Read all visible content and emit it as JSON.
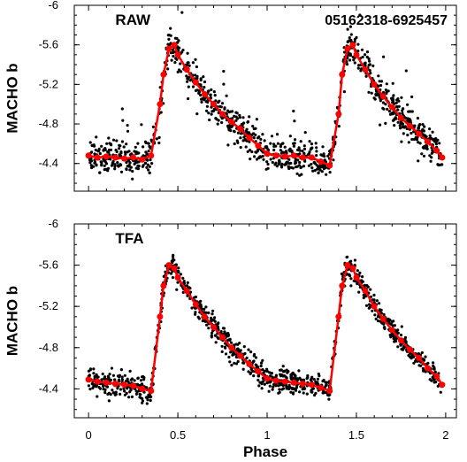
{
  "figure": {
    "star_id": "05162318-6925457",
    "x_axis_label": "Phase"
  },
  "colors": {
    "points": "#000000",
    "fit": "#ff0000",
    "axes": "#000000"
  },
  "chart_data": [
    {
      "type": "scatter",
      "panel_label": "RAW",
      "ylabel": "MACHO b",
      "xlim": [
        -0.08,
        2.06
      ],
      "ylim": [
        -6.0,
        -4.12
      ],
      "y_inverted": true,
      "xticks": [
        0,
        0.5,
        1,
        1.5,
        2
      ],
      "xtick_labels": [
        "0",
        "0.5",
        "1",
        "1.5",
        "2"
      ],
      "yticks": [
        -6.0,
        -5.6,
        -5.2,
        -4.8,
        -4.4
      ],
      "ytick_labels": [
        "-6",
        "-5.6",
        "-5.2",
        "-4.8",
        "-4.4"
      ],
      "series": [
        {
          "style": "red line with markers",
          "x": [
            0.0,
            0.05,
            0.1,
            0.15,
            0.2,
            0.25,
            0.3,
            0.35,
            0.4,
            0.42,
            0.45,
            0.48,
            0.5,
            0.55,
            0.6,
            0.65,
            0.7,
            0.75,
            0.8,
            0.85,
            0.9,
            0.95,
            1.0,
            1.05,
            1.1,
            1.15,
            1.2,
            1.25,
            1.3,
            1.35,
            1.4,
            1.42,
            1.45,
            1.48,
            1.5,
            1.55,
            1.6,
            1.65,
            1.7,
            1.75,
            1.8,
            1.85,
            1.9,
            1.95,
            1.98
          ],
          "y": [
            -4.48,
            -4.46,
            -4.47,
            -4.46,
            -4.45,
            -4.46,
            -4.44,
            -4.48,
            -5.0,
            -5.3,
            -5.56,
            -5.6,
            -5.5,
            -5.35,
            -5.22,
            -5.1,
            -5.0,
            -4.9,
            -4.82,
            -4.75,
            -4.66,
            -4.58,
            -4.5,
            -4.48,
            -4.47,
            -4.48,
            -4.46,
            -4.46,
            -4.42,
            -4.38,
            -4.9,
            -5.3,
            -5.56,
            -5.6,
            -5.5,
            -5.35,
            -5.2,
            -5.08,
            -4.97,
            -4.86,
            -4.78,
            -4.7,
            -4.62,
            -4.53,
            -4.46
          ]
        }
      ]
    },
    {
      "type": "scatter",
      "panel_label": "TFA",
      "ylabel": "MACHO b",
      "xlim": [
        -0.08,
        2.06
      ],
      "ylim": [
        -6.0,
        -4.12
      ],
      "y_inverted": true,
      "xticks": [
        0,
        0.5,
        1,
        1.5,
        2
      ],
      "xtick_labels": [
        "0",
        "0.5",
        "1",
        "1.5",
        "2"
      ],
      "yticks": [
        -6.0,
        -5.6,
        -5.2,
        -4.8,
        -4.4
      ],
      "ytick_labels": [
        "-6",
        "-5.6",
        "-5.2",
        "-4.8",
        "-4.4"
      ],
      "series": [
        {
          "style": "red line with markers",
          "x": [
            0.0,
            0.05,
            0.1,
            0.15,
            0.2,
            0.25,
            0.3,
            0.35,
            0.4,
            0.42,
            0.45,
            0.48,
            0.5,
            0.55,
            0.6,
            0.65,
            0.7,
            0.75,
            0.8,
            0.85,
            0.9,
            0.95,
            1.0,
            1.05,
            1.1,
            1.15,
            1.2,
            1.25,
            1.3,
            1.35,
            1.4,
            1.42,
            1.45,
            1.48,
            1.5,
            1.55,
            1.6,
            1.65,
            1.7,
            1.75,
            1.8,
            1.85,
            1.9,
            1.95,
            1.98
          ],
          "y": [
            -4.49,
            -4.47,
            -4.46,
            -4.45,
            -4.44,
            -4.43,
            -4.4,
            -4.38,
            -5.1,
            -5.4,
            -5.6,
            -5.57,
            -5.48,
            -5.35,
            -5.22,
            -5.1,
            -5.0,
            -4.9,
            -4.8,
            -4.72,
            -4.64,
            -4.57,
            -4.5,
            -4.48,
            -4.47,
            -4.46,
            -4.45,
            -4.44,
            -4.41,
            -4.38,
            -5.1,
            -5.4,
            -5.6,
            -5.57,
            -5.48,
            -5.35,
            -5.2,
            -5.08,
            -4.97,
            -4.87,
            -4.78,
            -4.7,
            -4.6,
            -4.52,
            -4.44
          ]
        }
      ]
    }
  ]
}
